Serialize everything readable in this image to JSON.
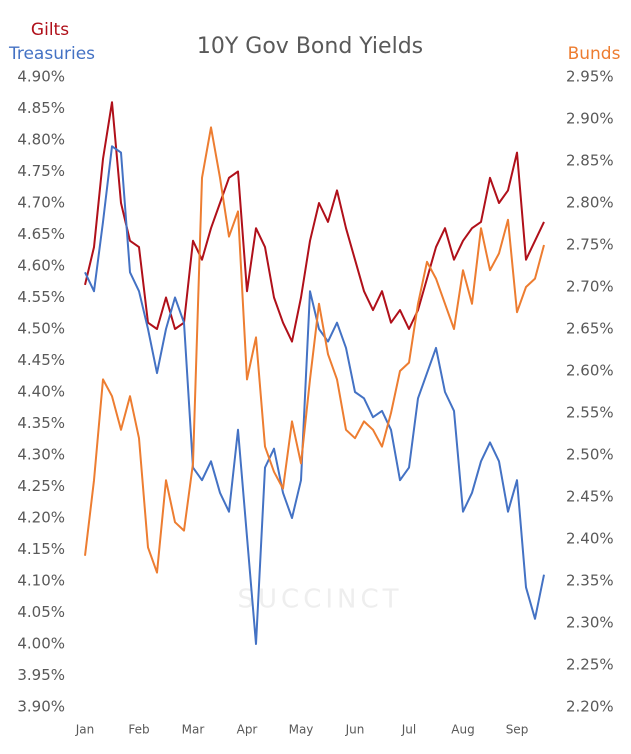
{
  "chart_data": {
    "type": "line",
    "title": "10Y Gov Bond Yields",
    "watermark": "SUCCINCT",
    "categories": [
      "Jan",
      null,
      null,
      null,
      null,
      null,
      "Feb",
      null,
      null,
      null,
      null,
      null,
      "Mar",
      null,
      null,
      null,
      null,
      null,
      "Apr",
      null,
      null,
      null,
      null,
      null,
      "May",
      null,
      null,
      null,
      null,
      null,
      "Jun",
      null,
      null,
      null,
      null,
      null,
      "Jul",
      null,
      null,
      null,
      null,
      null,
      "Aug",
      null,
      null,
      null,
      null,
      null,
      "Sep",
      null,
      null,
      null
    ],
    "series": [
      {
        "name": "Gilts",
        "color": "#b0101a",
        "axis": "y",
        "values": [
          4.57,
          4.63,
          4.77,
          4.86,
          4.7,
          4.64,
          4.63,
          4.51,
          4.5,
          4.55,
          4.5,
          4.51,
          4.64,
          4.61,
          4.66,
          4.7,
          4.74,
          4.75,
          4.56,
          4.66,
          4.63,
          4.55,
          4.51,
          4.48,
          4.55,
          4.64,
          4.7,
          4.67,
          4.72,
          4.66,
          4.61,
          4.56,
          4.53,
          4.56,
          4.51,
          4.53,
          4.5,
          4.53,
          4.58,
          4.63,
          4.66,
          4.61,
          4.64,
          4.66,
          4.67,
          4.74,
          4.7,
          4.72,
          4.78,
          4.61,
          4.64,
          4.67
        ]
      },
      {
        "name": "Treasuries",
        "color": "#4472c4",
        "axis": "y",
        "values": [
          4.59,
          4.56,
          4.67,
          4.79,
          4.78,
          4.59,
          4.56,
          4.5,
          4.43,
          4.5,
          4.55,
          4.51,
          4.28,
          4.26,
          4.29,
          4.24,
          4.21,
          4.34,
          4.17,
          4.0,
          4.28,
          4.31,
          4.24,
          4.2,
          4.26,
          4.56,
          4.5,
          4.48,
          4.51,
          4.47,
          4.4,
          4.39,
          4.36,
          4.37,
          4.34,
          4.26,
          4.28,
          4.39,
          4.43,
          4.47,
          4.4,
          4.37,
          4.21,
          4.24,
          4.29,
          4.32,
          4.29,
          4.21,
          4.26,
          4.09,
          4.04,
          4.11
        ]
      },
      {
        "name": "Bunds",
        "color": "#ed7d31",
        "axis": "y2",
        "values": [
          2.38,
          2.47,
          2.59,
          2.57,
          2.53,
          2.57,
          2.52,
          2.39,
          2.36,
          2.47,
          2.42,
          2.41,
          2.49,
          2.83,
          2.89,
          2.83,
          2.76,
          2.79,
          2.59,
          2.64,
          2.51,
          2.48,
          2.46,
          2.54,
          2.49,
          2.59,
          2.68,
          2.62,
          2.59,
          2.53,
          2.52,
          2.54,
          2.53,
          2.51,
          2.55,
          2.6,
          2.61,
          2.68,
          2.73,
          2.71,
          2.68,
          2.65,
          2.72,
          2.68,
          2.77,
          2.72,
          2.74,
          2.78,
          2.67,
          2.7,
          2.71,
          2.75
        ]
      }
    ],
    "ylim": [
      3.9,
      4.9
    ],
    "yticks": [
      {
        "value": 3.9,
        "label": "3.90%"
      },
      {
        "value": 3.95,
        "label": "3.95%"
      },
      {
        "value": 4.0,
        "label": "4.00%"
      },
      {
        "value": 4.05,
        "label": "4.05%"
      },
      {
        "value": 4.1,
        "label": "4.10%"
      },
      {
        "value": 4.15,
        "label": "4.15%"
      },
      {
        "value": 4.2,
        "label": "4.20%"
      },
      {
        "value": 4.25,
        "label": "4.25%"
      },
      {
        "value": 4.3,
        "label": "4.30%"
      },
      {
        "value": 4.35,
        "label": "4.35%"
      },
      {
        "value": 4.4,
        "label": "4.40%"
      },
      {
        "value": 4.45,
        "label": "4.45%"
      },
      {
        "value": 4.5,
        "label": "4.50%"
      },
      {
        "value": 4.55,
        "label": "4.55%"
      },
      {
        "value": 4.6,
        "label": "4.60%"
      },
      {
        "value": 4.65,
        "label": "4.65%"
      },
      {
        "value": 4.7,
        "label": "4.70%"
      },
      {
        "value": 4.75,
        "label": "4.75%"
      },
      {
        "value": 4.8,
        "label": "4.80%"
      },
      {
        "value": 4.85,
        "label": "4.85%"
      },
      {
        "value": 4.9,
        "label": "4.90%"
      }
    ],
    "y2lim": [
      2.2,
      2.95
    ],
    "y2ticks": [
      {
        "value": 2.2,
        "label": "2.20%"
      },
      {
        "value": 2.25,
        "label": "2.25%"
      },
      {
        "value": 2.3,
        "label": "2.30%"
      },
      {
        "value": 2.35,
        "label": "2.35%"
      },
      {
        "value": 2.4,
        "label": "2.40%"
      },
      {
        "value": 2.45,
        "label": "2.45%"
      },
      {
        "value": 2.5,
        "label": "2.50%"
      },
      {
        "value": 2.55,
        "label": "2.55%"
      },
      {
        "value": 2.6,
        "label": "2.60%"
      },
      {
        "value": 2.65,
        "label": "2.65%"
      },
      {
        "value": 2.7,
        "label": "2.70%"
      },
      {
        "value": 2.75,
        "label": "2.75%"
      },
      {
        "value": 2.8,
        "label": "2.80%"
      },
      {
        "value": 2.85,
        "label": "2.85%"
      },
      {
        "value": 2.9,
        "label": "2.90%"
      },
      {
        "value": 2.95,
        "label": "2.95%"
      }
    ],
    "grid": false
  }
}
